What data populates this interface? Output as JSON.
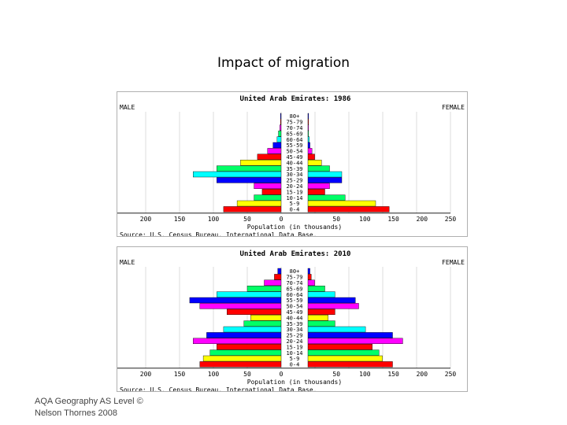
{
  "slide": {
    "title": "Impact of migration",
    "footer": {
      "line1": "AQA Geography AS Level ©",
      "line2": "Nelson Thornes 2008"
    }
  },
  "colors": {
    "red": "#ff0000",
    "yellow": "#ffff00",
    "cyan": "#00ffff",
    "green": "#00ff66",
    "blue": "#0000ff",
    "magenta": "#ff00ff",
    "color_cycle_from_youngest": [
      "#ff0000",
      "#ffff00",
      "#00ff66",
      "#ff0000",
      "#ff00ff",
      "#0000ff",
      "#00ffff",
      "#00ff66",
      "#ffff00",
      "#ff0000",
      "#ff00ff",
      "#0000ff",
      "#00ffff",
      "#00ff66",
      "#ff00ff",
      "#ff0000",
      "#0000ff",
      "#ffff00"
    ]
  },
  "chart_data": [
    {
      "type": "bar",
      "orientation": "horizontal-population-pyramid",
      "title": "United Arab Emirates: 1986",
      "left_label": "MALE",
      "right_label": "FEMALE",
      "xlabel": "Population (in thousands)",
      "source": "Source: U.S. Census Bureau, International Data Base.",
      "categories": [
        "0-4",
        "5-9",
        "10-14",
        "15-19",
        "20-24",
        "25-29",
        "30-34",
        "35-39",
        "40-44",
        "45-49",
        "50-54",
        "55-59",
        "60-64",
        "65-69",
        "70-74",
        "75-79",
        "80+"
      ],
      "x_ticks": [
        250,
        200,
        150,
        100,
        50,
        0,
        50,
        100,
        150,
        200,
        250
      ],
      "xlim": [
        -250,
        250
      ],
      "grid": true,
      "series": [
        {
          "name": "MALE",
          "values": [
            85,
            65,
            40,
            28,
            40,
            95,
            130,
            95,
            60,
            35,
            20,
            12,
            6,
            4,
            2,
            1,
            1
          ]
        },
        {
          "name": "FEMALE",
          "values": [
            120,
            100,
            55,
            25,
            32,
            50,
            50,
            32,
            20,
            10,
            6,
            3,
            2,
            1,
            1,
            1,
            1
          ]
        }
      ]
    },
    {
      "type": "bar",
      "orientation": "horizontal-population-pyramid",
      "title": "United Arab Emirates: 2010",
      "left_label": "MALE",
      "right_label": "FEMALE",
      "xlabel": "Population (in thousands)",
      "source": "Source: U.S. Census Bureau, International Data Base.",
      "categories": [
        "0-4",
        "5-9",
        "10-14",
        "15-19",
        "20-24",
        "25-29",
        "30-34",
        "35-39",
        "40-44",
        "45-49",
        "50-54",
        "55-59",
        "60-64",
        "65-69",
        "70-74",
        "75-79",
        "80+"
      ],
      "x_ticks": [
        250,
        200,
        150,
        100,
        50,
        0,
        50,
        100,
        150,
        200,
        250
      ],
      "xlim": [
        -250,
        250
      ],
      "grid": true,
      "series": [
        {
          "name": "MALE",
          "values": [
            120,
            115,
            105,
            95,
            130,
            110,
            85,
            55,
            45,
            80,
            120,
            135,
            95,
            50,
            25,
            10,
            5
          ]
        },
        {
          "name": "FEMALE",
          "values": [
            125,
            110,
            105,
            95,
            140,
            125,
            85,
            40,
            30,
            40,
            75,
            70,
            40,
            25,
            10,
            5,
            3
          ]
        }
      ]
    }
  ]
}
